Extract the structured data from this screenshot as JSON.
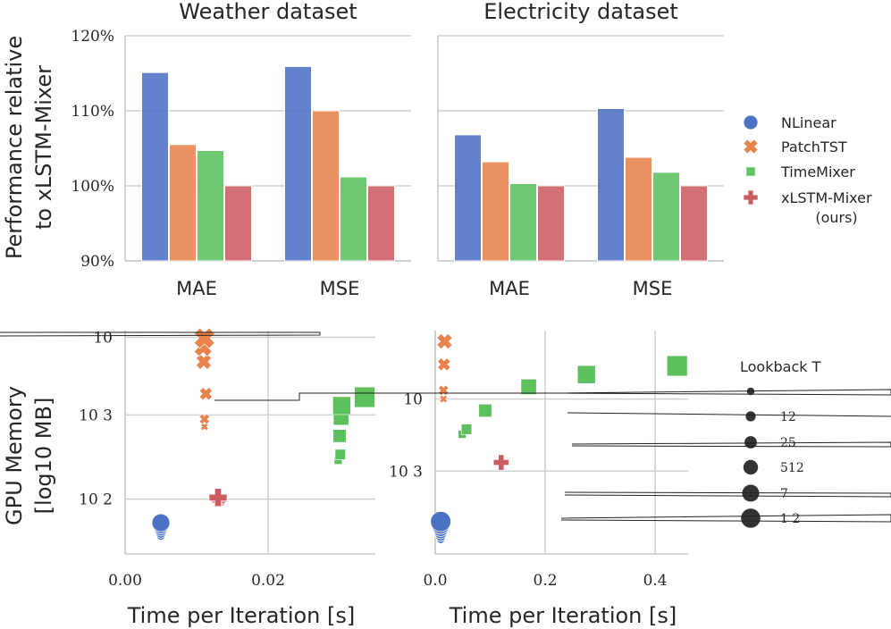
{
  "colors": {
    "NLinear": "#4c72c4",
    "PatchTST": "#e8834d",
    "TimeMixer": "#5cc05c",
    "xLSTM-Mixer": "#cd5c62"
  },
  "chart_data": [
    {
      "type": "bar",
      "title": "Weather dataset",
      "ylabel": "Performance relative to xLSTM-Mixer",
      "categories": [
        "MAE",
        "MSE"
      ],
      "ylim": [
        90,
        120
      ],
      "yticks": [
        "90%",
        "100%",
        "110%",
        "120%"
      ],
      "series": [
        {
          "name": "NLinear",
          "values": [
            115.1,
            115.9
          ]
        },
        {
          "name": "PatchTST",
          "values": [
            105.5,
            110.0
          ]
        },
        {
          "name": "TimeMixer",
          "values": [
            104.7,
            101.2
          ]
        },
        {
          "name": "xLSTM-Mixer",
          "values": [
            100.0,
            100.0
          ]
        }
      ]
    },
    {
      "type": "bar",
      "title": "Electricity dataset",
      "categories": [
        "MAE",
        "MSE"
      ],
      "ylim": [
        90,
        120
      ],
      "series": [
        {
          "name": "NLinear",
          "values": [
            106.8,
            110.3
          ]
        },
        {
          "name": "PatchTST",
          "values": [
            103.2,
            103.8
          ]
        },
        {
          "name": "TimeMixer",
          "values": [
            100.3,
            101.8
          ]
        },
        {
          "name": "xLSTM-Mixer",
          "values": [
            100.0,
            100.0
          ]
        }
      ]
    },
    {
      "type": "scatter",
      "xlabel": "Time per Iteration [s]",
      "ylabel_line1": "GPU Memory",
      "ylabel_line2": "[log10 MB]",
      "xlim": [
        0.0,
        0.035
      ],
      "xticks": [
        "0.00",
        "0.02"
      ],
      "yticks": [
        "10",
        "10 3",
        "10 2"
      ],
      "series": [
        {
          "name": "NLinear",
          "marker": "circle",
          "points": [
            {
              "t": 0.005,
              "mem": 1.56,
              "size": 1
            },
            {
              "t": 0.005,
              "mem": 1.6,
              "size": 2
            },
            {
              "t": 0.005,
              "mem": 1.64,
              "size": 3
            },
            {
              "t": 0.005,
              "mem": 1.68,
              "size": 4
            },
            {
              "t": 0.005,
              "mem": 1.72,
              "size": 5
            }
          ]
        },
        {
          "name": "PatchTST",
          "marker": "x",
          "points": [
            {
              "t": 0.0111,
              "mem": 2.86,
              "size": 1
            },
            {
              "t": 0.0111,
              "mem": 2.95,
              "size": 2
            },
            {
              "t": 0.0113,
              "mem": 3.25,
              "size": 3
            },
            {
              "t": 0.011,
              "mem": 3.63,
              "size": 4
            },
            {
              "t": 0.0109,
              "mem": 3.8,
              "size": 5
            },
            {
              "t": 0.0111,
              "mem": 3.91,
              "size": 6
            }
          ]
        },
        {
          "name": "TimeMixer",
          "marker": "square",
          "points": [
            {
              "t": 0.0298,
              "mem": 2.46,
              "size": 1
            },
            {
              "t": 0.0301,
              "mem": 2.53,
              "size": 2
            },
            {
              "t": 0.03,
              "mem": 2.75,
              "size": 3
            },
            {
              "t": 0.0302,
              "mem": 2.97,
              "size": 4
            },
            {
              "t": 0.0303,
              "mem": 3.11,
              "size": 5
            },
            {
              "t": 0.0335,
              "mem": 3.21,
              "size": 6
            }
          ]
        },
        {
          "name": "xLSTM-Mixer",
          "marker": "plus",
          "points": [
            {
              "t": 0.0133,
              "mem": 1.94,
              "size": 1
            },
            {
              "t": 0.0132,
              "mem": 1.96,
              "size": 2
            },
            {
              "t": 0.0131,
              "mem": 1.98,
              "size": 3
            },
            {
              "t": 0.0131,
              "mem": 2.0,
              "size": 4
            },
            {
              "t": 0.013,
              "mem": 2.02,
              "size": 5
            }
          ]
        }
      ]
    },
    {
      "type": "scatter",
      "xlabel": "Time per Iteration [s]",
      "xlim": [
        0.0,
        0.46
      ],
      "xticks": [
        "0.0",
        "0.2",
        "0.4"
      ],
      "yticks": [
        "10",
        "10 3"
      ],
      "series": [
        {
          "name": "NLinear",
          "marker": "circle",
          "points": [
            {
              "t": 0.01,
              "mem": 2.05,
              "size": 1
            },
            {
              "t": 0.01,
              "mem": 2.1,
              "size": 2
            },
            {
              "t": 0.01,
              "mem": 2.15,
              "size": 3
            },
            {
              "t": 0.01,
              "mem": 2.2,
              "size": 4
            },
            {
              "t": 0.01,
              "mem": 2.25,
              "size": 5
            },
            {
              "t": 0.01,
              "mem": 2.3,
              "size": 6
            }
          ]
        },
        {
          "name": "PatchTST",
          "marker": "x",
          "points": [
            {
              "t": 0.015,
              "mem": 4.0,
              "size": 1
            },
            {
              "t": 0.015,
              "mem": 4.12,
              "size": 2
            },
            {
              "t": 0.016,
              "mem": 4.48,
              "size": 3
            },
            {
              "t": 0.017,
              "mem": 4.8,
              "size": 4
            }
          ]
        },
        {
          "name": "TimeMixer",
          "marker": "square",
          "points": [
            {
              "t": 0.049,
              "mem": 3.51,
              "size": 1
            },
            {
              "t": 0.057,
              "mem": 3.58,
              "size": 2
            },
            {
              "t": 0.091,
              "mem": 3.84,
              "size": 3
            },
            {
              "t": 0.17,
              "mem": 4.17,
              "size": 4
            },
            {
              "t": 0.275,
              "mem": 4.34,
              "size": 5
            },
            {
              "t": 0.44,
              "mem": 4.46,
              "size": 6
            }
          ]
        },
        {
          "name": "xLSTM-Mixer",
          "marker": "plus",
          "points": [
            {
              "t": 0.12,
              "mem": 3.12,
              "size": 4
            }
          ]
        }
      ]
    }
  ],
  "legend": {
    "entries": [
      {
        "name": "NLinear",
        "label": "NLinear",
        "marker": "circle"
      },
      {
        "name": "PatchTST",
        "label": "PatchTST",
        "marker": "x"
      },
      {
        "name": "TimeMixer",
        "label": "TimeMixer",
        "marker": "square"
      },
      {
        "name": "xLSTM-Mixer",
        "label": "xLSTM-Mixer",
        "marker": "plus"
      }
    ],
    "ours_label": "(ours)",
    "size_title": "Lookback T",
    "size_entries": [
      {
        "label": "",
        "size": 1
      },
      {
        "label": "12",
        "size": 2
      },
      {
        "label": "25",
        "size": 3
      },
      {
        "label": "512",
        "size": 4
      },
      {
        "label": "7",
        "size": 5
      },
      {
        "label": "1 2",
        "size": 6
      }
    ]
  }
}
